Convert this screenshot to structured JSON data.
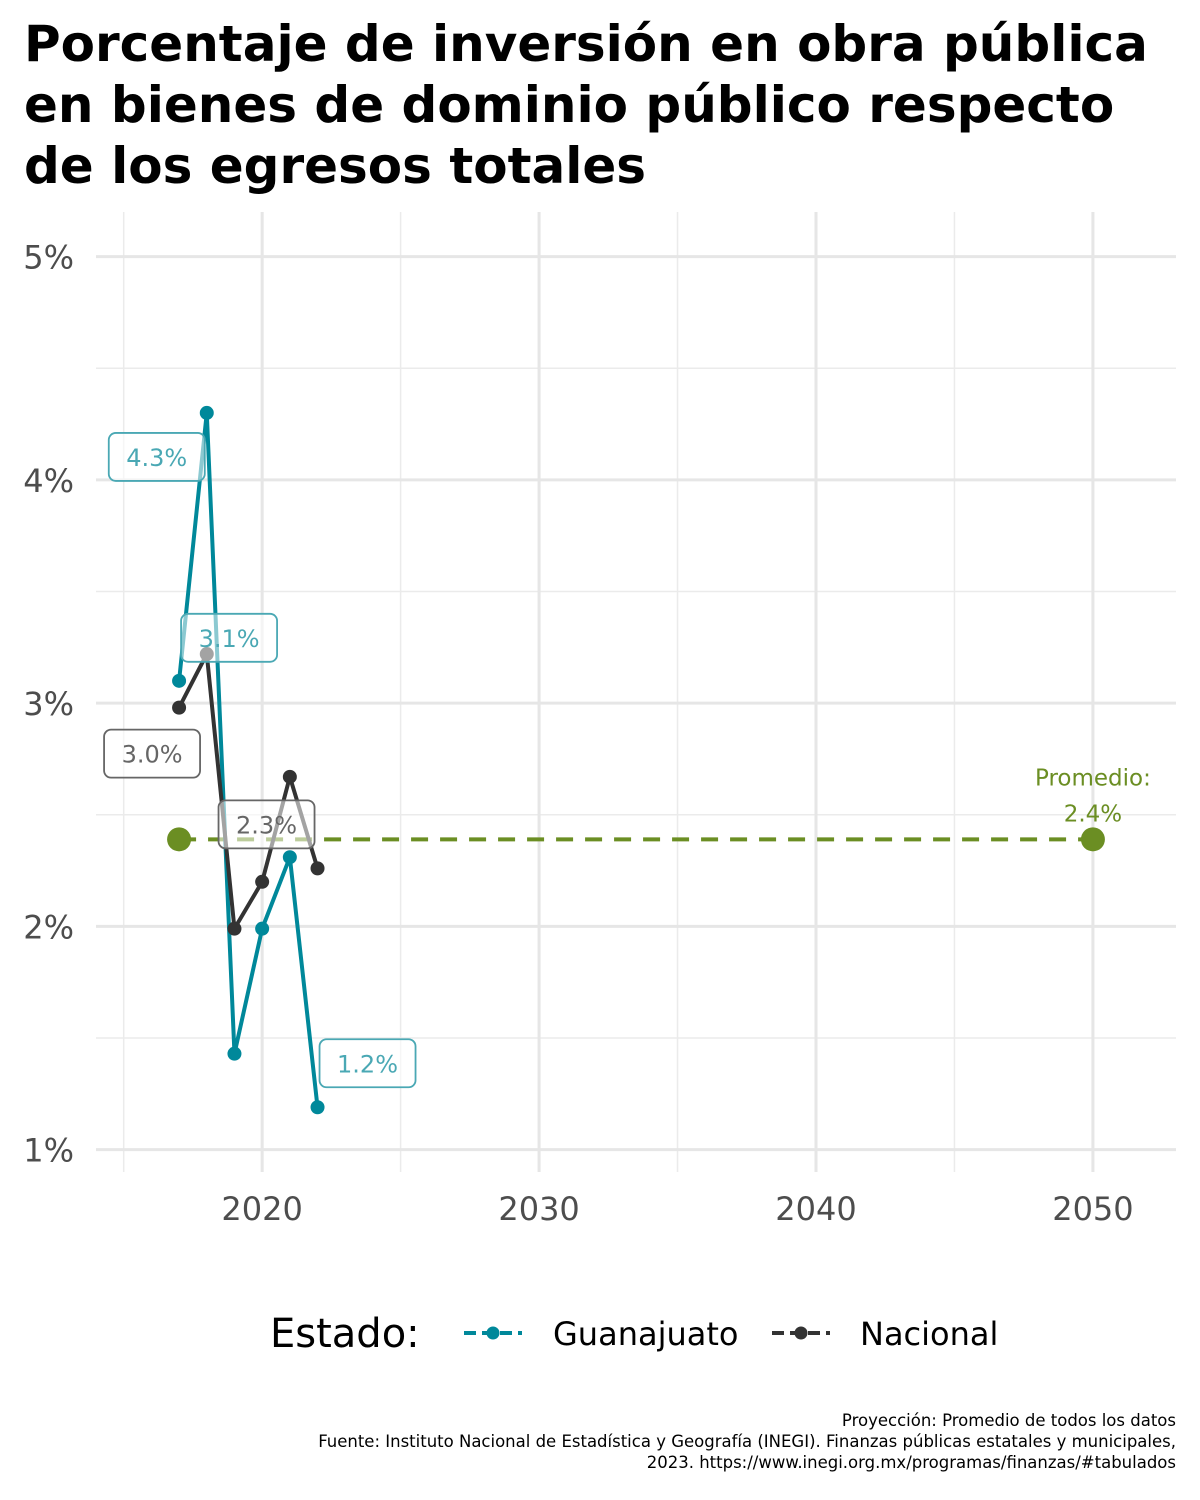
{
  "title": "Porcentaje de inversión en obra pública en bienes de dominio público respecto de los egresos totales",
  "legend": {
    "title": "Estado:",
    "items": [
      {
        "label": "Guanajuato",
        "color": "#00889A"
      },
      {
        "label": "Nacional",
        "color": "#333333"
      }
    ]
  },
  "caption": [
    "Proyección: Promedio de todos los datos",
    "Fuente: Instituto Nacional de Estadística y Geografía (INEGI). Finanzas públicas estatales y municipales,",
    "2023. https://www.inegi.org.mx/programas/finanzas/#tabulados"
  ],
  "chart_data": {
    "type": "line",
    "xlim": [
      2014,
      2053
    ],
    "ylim": [
      0.9,
      5.2
    ],
    "x_ticks": [
      2020,
      2030,
      2040,
      2050
    ],
    "x_tick_labels": [
      "2020",
      "2030",
      "2040",
      "2050"
    ],
    "y_ticks": [
      1,
      2,
      3,
      4,
      5
    ],
    "y_tick_labels": [
      "1%",
      "2%",
      "3%",
      "4%",
      "5%"
    ],
    "grid": true,
    "legend_position": "bottom",
    "series": [
      {
        "name": "Guanajuato",
        "color": "#00889A",
        "x": [
          2017,
          2018,
          2019,
          2020,
          2021,
          2022
        ],
        "y": [
          3.1,
          4.3,
          1.43,
          1.99,
          2.31,
          1.19
        ]
      },
      {
        "name": "Nacional",
        "color": "#333333",
        "x": [
          2017,
          2018,
          2019,
          2020,
          2021,
          2022
        ],
        "y": [
          2.98,
          3.22,
          1.99,
          2.2,
          2.67,
          2.26
        ]
      }
    ],
    "average": {
      "value": 2.39,
      "x_range": [
        2017,
        2050
      ],
      "color": "#6B8E23",
      "label_line1": "Promedio:",
      "label_line2": "2.4%"
    },
    "annotations": [
      {
        "series": "Guanajuato",
        "x": 2017,
        "y": 3.1,
        "text": "3.1%"
      },
      {
        "series": "Guanajuato",
        "x": 2018,
        "y": 4.3,
        "text": "4.3%"
      },
      {
        "series": "Guanajuato",
        "x": 2022,
        "y": 1.19,
        "text": "1.2%"
      },
      {
        "series": "Nacional",
        "x": 2017,
        "y": 2.98,
        "text": "3.0%"
      },
      {
        "series": "Nacional",
        "x": 2022,
        "y": 2.26,
        "text": "2.3%"
      }
    ]
  }
}
